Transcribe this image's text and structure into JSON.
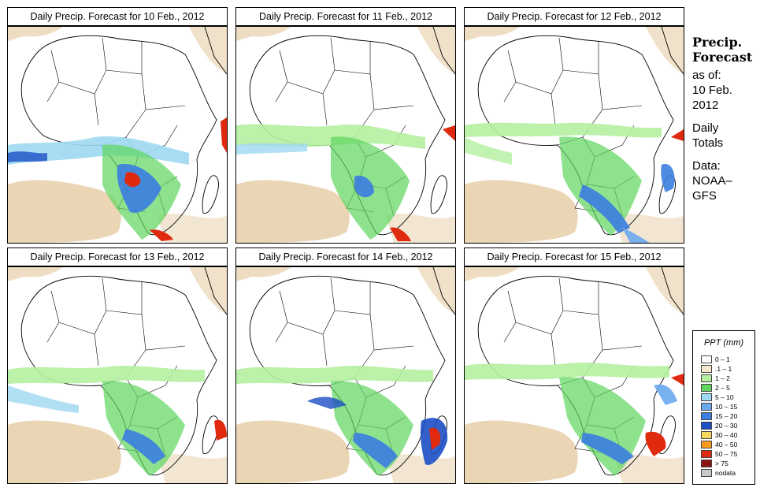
{
  "panels": [
    {
      "title": "Daily Precip. Forecast for  10 Feb., 2012"
    },
    {
      "title": "Daily Precip. Forecast for  11 Feb., 2012"
    },
    {
      "title": "Daily Precip. Forecast for  12 Feb., 2012"
    },
    {
      "title": "Daily Precip. Forecast for  13 Feb., 2012"
    },
    {
      "title": "Daily Precip. Forecast for  14 Feb., 2012"
    },
    {
      "title": "Daily Precip. Forecast for  15 Feb., 2012"
    }
  ],
  "sidebar": {
    "heading_line1": "Precip.",
    "heading_line2": "Forecast",
    "as_of": "as of:",
    "date_line1": "10 Feb.",
    "date_line2": "2012",
    "totals_line1": "Daily",
    "totals_line2": "Totals",
    "data_label": "Data:",
    "source_line1": "NOAA–",
    "source_line2": "GFS"
  },
  "legend": {
    "title": "PPT (mm)",
    "items": [
      {
        "label": "0 – 1",
        "color": "#ffffff"
      },
      {
        "label": ".1 – 1",
        "color": "#f6e8c8"
      },
      {
        "label": "1 – 2",
        "color": "#b4f0a0"
      },
      {
        "label": "2 – 5",
        "color": "#5ed55e"
      },
      {
        "label": "5 – 10",
        "color": "#9ed8f2"
      },
      {
        "label": "10 – 15",
        "color": "#6aa8ee"
      },
      {
        "label": "15 – 20",
        "color": "#3b7ee0"
      },
      {
        "label": "20 – 30",
        "color": "#1c4fc4"
      },
      {
        "label": "30 – 40",
        "color": "#f6d860"
      },
      {
        "label": "40 – 50",
        "color": "#f89a1e"
      },
      {
        "label": "50 – 75",
        "color": "#e02a10"
      },
      {
        "label": "> 75",
        "color": "#8a1410"
      },
      {
        "label": "nodata",
        "color": "#c8c8c8"
      }
    ]
  }
}
